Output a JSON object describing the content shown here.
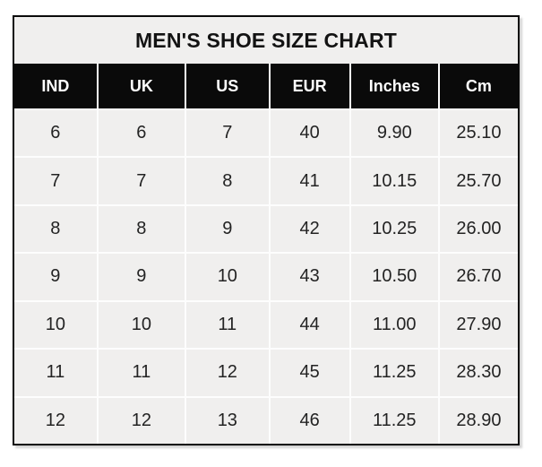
{
  "chart_data": {
    "type": "table",
    "title": "MEN'S SHOE SIZE CHART",
    "columns": [
      "IND",
      "UK",
      "US",
      "EUR",
      "Inches",
      "Cm"
    ],
    "rows": [
      [
        "6",
        "6",
        "7",
        "40",
        "9.90",
        "25.10"
      ],
      [
        "7",
        "7",
        "8",
        "41",
        "10.15",
        "25.70"
      ],
      [
        "8",
        "8",
        "9",
        "42",
        "10.25",
        "26.00"
      ],
      [
        "9",
        "9",
        "10",
        "43",
        "10.50",
        "26.70"
      ],
      [
        "10",
        "10",
        "11",
        "44",
        "11.00",
        "27.90"
      ],
      [
        "11",
        "11",
        "12",
        "45",
        "11.25",
        "28.30"
      ],
      [
        "12",
        "12",
        "13",
        "46",
        "11.25",
        "28.90"
      ]
    ],
    "layout": {
      "legend": "none",
      "grid_lines": "white separators between cells"
    }
  },
  "colors": {
    "page_bg": "#ffffff",
    "title_band_bg": "#f0efee",
    "header_bg": "#0a0a0a",
    "header_text": "#ffffff",
    "cell_bg": "#f0efee",
    "cell_text": "#232323",
    "grid_line": "#fdfdfd",
    "outer_border": "#0b0b0b"
  }
}
